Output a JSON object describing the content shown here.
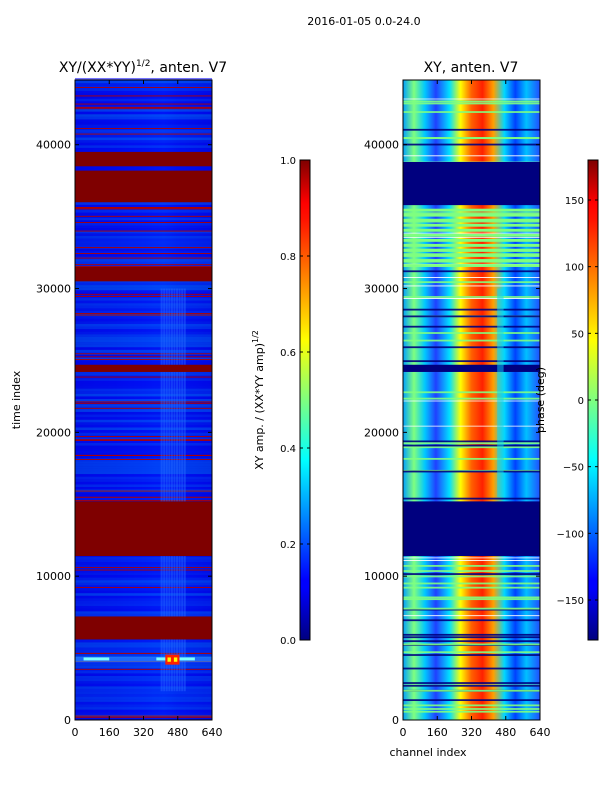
{
  "figure": {
    "suptitle": "2016-01-05 0.0-24.0"
  },
  "chart_data": [
    {
      "type": "heatmap",
      "title_main": "XY/(XX*YY)",
      "title_power": "1/2",
      "title_rest": ", anten. V7",
      "xlabel": "channel index",
      "ylabel": "time index",
      "xlim": [
        0,
        640
      ],
      "ylim": [
        0,
        44500
      ],
      "x_ticks": [
        0,
        160,
        320,
        480,
        640
      ],
      "y_ticks": [
        0,
        10000,
        20000,
        30000,
        40000
      ],
      "x_tick_labels": [
        "0",
        "160",
        "320",
        "480",
        "640"
      ],
      "y_tick_labels": [
        "0",
        "10000",
        "20000",
        "30000",
        "40000"
      ],
      "colorbar": {
        "label_main": "XY amp. / (XX*YY amp)",
        "label_power": "1/2",
        "range": [
          0.0,
          1.0
        ],
        "ticks": [
          0.0,
          0.2,
          0.4,
          0.6,
          0.8,
          1.0
        ],
        "tick_labels": [
          "0.0",
          "0.2",
          "0.4",
          "0.6",
          "0.8",
          "1.0"
        ]
      },
      "saturated_time_bands": [
        [
          5600,
          7200
        ],
        [
          11400,
          15200
        ],
        [
          24200,
          24700
        ],
        [
          30500,
          31500
        ],
        [
          36000,
          38200
        ],
        [
          38500,
          39500
        ]
      ],
      "bright_features": [
        {
          "channel": 440,
          "time": 4200
        },
        {
          "channel": 470,
          "time": 4200
        }
      ]
    },
    {
      "type": "heatmap",
      "title": "XY, anten. V7",
      "xlabel": "channel index",
      "ylabel": "",
      "xlim": [
        0,
        640
      ],
      "ylim": [
        0,
        44500
      ],
      "x_ticks": [
        0,
        160,
        320,
        480,
        640
      ],
      "y_ticks": [
        0,
        10000,
        20000,
        30000,
        40000
      ],
      "x_tick_labels": [
        "0",
        "160",
        "320",
        "480",
        "640"
      ],
      "y_tick_labels": [
        "0",
        "10000",
        "20000",
        "30000",
        "40000"
      ],
      "colorbar": {
        "label": "phase (deg)",
        "range": [
          -180,
          180
        ],
        "ticks": [
          -150,
          -100,
          -50,
          0,
          50,
          100,
          150
        ],
        "tick_labels": [
          "−150",
          "−100",
          "−50",
          "0",
          "50",
          "100",
          "150"
        ]
      },
      "flagged_time_bands": [
        [
          11400,
          15200
        ],
        [
          35800,
          38800
        ],
        [
          24200,
          24700
        ]
      ]
    }
  ]
}
